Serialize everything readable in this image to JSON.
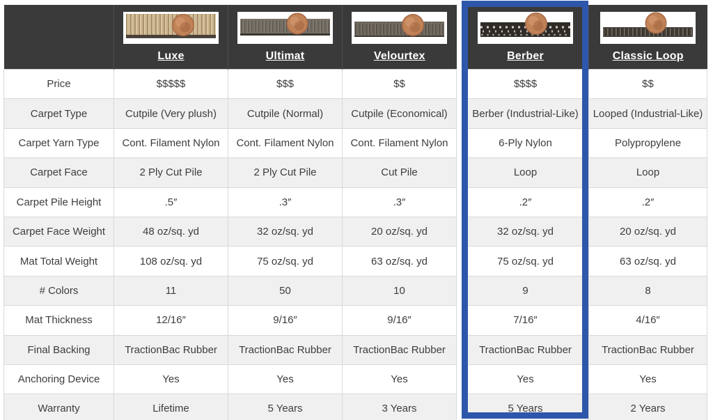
{
  "colors": {
    "header_bg": "#3a3a3a",
    "header_text": "#ffffff",
    "highlight_border": "#2e57ab",
    "row_stripe": "#f0f0f0",
    "cell_border": "#d9d9d9",
    "body_text": "#3d3d3d"
  },
  "table": {
    "highlighted_product": "Berber",
    "products": [
      {
        "name": "Luxe",
        "image_alt": "Luxe plush tan carpet cross-section with penny"
      },
      {
        "name": "Ultimat",
        "image_alt": "Ultimat gray cutpile carpet cross-section with penny"
      },
      {
        "name": "Velourtex",
        "image_alt": "Velourtex low gray carpet cross-section with penny"
      },
      {
        "name": "Berber",
        "image_alt": "Berber speckled loop carpet cross-section with penny"
      },
      {
        "name": "Classic Loop",
        "image_alt": "Classic Loop thin dark carpet cross-section with penny"
      }
    ],
    "rows": [
      {
        "label": "Price",
        "values": [
          "$$$$$",
          "$$$",
          "$$",
          "$$$$",
          "$$"
        ]
      },
      {
        "label": "Carpet Type",
        "values": [
          "Cutpile (Very plush)",
          "Cutpile (Normal)",
          "Cutpile (Economical)",
          "Berber (Industrial-Like)",
          "Looped (Industrial-Like)"
        ]
      },
      {
        "label": "Carpet Yarn Type",
        "values": [
          "Cont. Filament Nylon",
          "Cont. Filament Nylon",
          "Cont. Filament Nylon",
          "6-Ply Nylon",
          "Polypropylene"
        ]
      },
      {
        "label": "Carpet Face",
        "values": [
          "2 Ply Cut Pile",
          "2 Ply Cut Pile",
          "Cut Pile",
          "Loop",
          "Loop"
        ]
      },
      {
        "label": "Carpet Pile Height",
        "values": [
          ".5″",
          ".3″",
          ".3″",
          ".2″",
          ".2″"
        ]
      },
      {
        "label": "Carpet Face Weight",
        "values": [
          "48 oz/sq. yd",
          "32 oz/sq. yd",
          "20 oz/sq. yd",
          "32 oz/sq. yd",
          "20 oz/sq. yd"
        ]
      },
      {
        "label": "Mat Total Weight",
        "values": [
          "108 oz/sq. yd",
          "75 oz/sq. yd",
          "63 oz/sq. yd",
          "75 oz/sq. yd",
          "63 oz/sq. yd"
        ]
      },
      {
        "label": "# Colors",
        "values": [
          "11",
          "50",
          "10",
          "9",
          "8"
        ]
      },
      {
        "label": "Mat Thickness",
        "values": [
          "12/16″",
          "9/16″",
          "9/16″",
          "7/16″",
          "4/16″"
        ]
      },
      {
        "label": "Final Backing",
        "values": [
          "TractionBac Rubber",
          "TractionBac Rubber",
          "TractionBac Rubber",
          "TractionBac Rubber",
          "TractionBac Rubber"
        ]
      },
      {
        "label": "Anchoring Device",
        "values": [
          "Yes",
          "Yes",
          "Yes",
          "Yes",
          "Yes"
        ]
      },
      {
        "label": "Warranty",
        "values": [
          "Lifetime",
          "5 Years",
          "3 Years",
          "5 Years",
          "2 Years"
        ]
      }
    ]
  }
}
